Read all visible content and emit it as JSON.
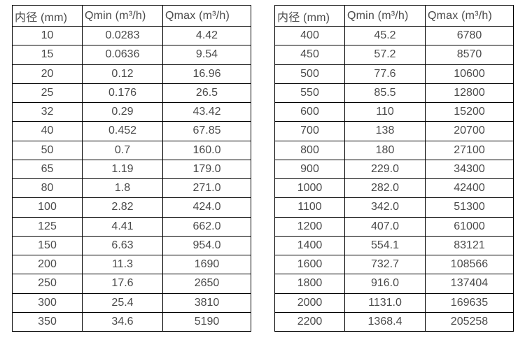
{
  "colors": {
    "background": "#ffffff",
    "table_border": "#000000",
    "text": "#4a4a4a"
  },
  "tables": [
    {
      "name": "flow-table-small-diameters",
      "headers": [
        "内径 (mm)",
        "Qmin (m³/h)",
        "Qmax (m³/h)"
      ],
      "rows": [
        [
          "10",
          "0.0283",
          "4.42"
        ],
        [
          "15",
          "0.0636",
          "9.54"
        ],
        [
          "20",
          "0.12",
          "16.96"
        ],
        [
          "25",
          "0.176",
          "26.5"
        ],
        [
          "32",
          "0.29",
          "43.42"
        ],
        [
          "40",
          "0.452",
          "67.85"
        ],
        [
          "50",
          "0.7",
          "160.0"
        ],
        [
          "65",
          "1.19",
          "179.0"
        ],
        [
          "80",
          "1.8",
          "271.0"
        ],
        [
          "100",
          "2.82",
          "424.0"
        ],
        [
          "125",
          "4.41",
          "662.0"
        ],
        [
          "150",
          "6.63",
          "954.0"
        ],
        [
          "200",
          "11.3",
          "1690"
        ],
        [
          "250",
          "17.6",
          "2650"
        ],
        [
          "300",
          "25.4",
          "3810"
        ],
        [
          "350",
          "34.6",
          "5190"
        ]
      ]
    },
    {
      "name": "flow-table-large-diameters",
      "headers": [
        "内径 (mm)",
        "Qmin (m³/h)",
        "Qmax (m³/h)"
      ],
      "rows": [
        [
          "400",
          "45.2",
          "6780"
        ],
        [
          "450",
          "57.2",
          "8570"
        ],
        [
          "500",
          "77.6",
          "10600"
        ],
        [
          "550",
          "85.5",
          "12800"
        ],
        [
          "600",
          "110",
          "15200"
        ],
        [
          "700",
          "138",
          "20700"
        ],
        [
          "800",
          "180",
          "27100"
        ],
        [
          "900",
          "229.0",
          "34300"
        ],
        [
          "1000",
          "282.0",
          "42400"
        ],
        [
          "1100",
          "342.0",
          "51300"
        ],
        [
          "1200",
          "407.0",
          "61000"
        ],
        [
          "1400",
          "554.1",
          "83121"
        ],
        [
          "1600",
          "732.7",
          "108566"
        ],
        [
          "1800",
          "916.0",
          "137404"
        ],
        [
          "2000",
          "1131.0",
          "169635"
        ],
        [
          "2200",
          "1368.4",
          "205258"
        ]
      ]
    }
  ]
}
